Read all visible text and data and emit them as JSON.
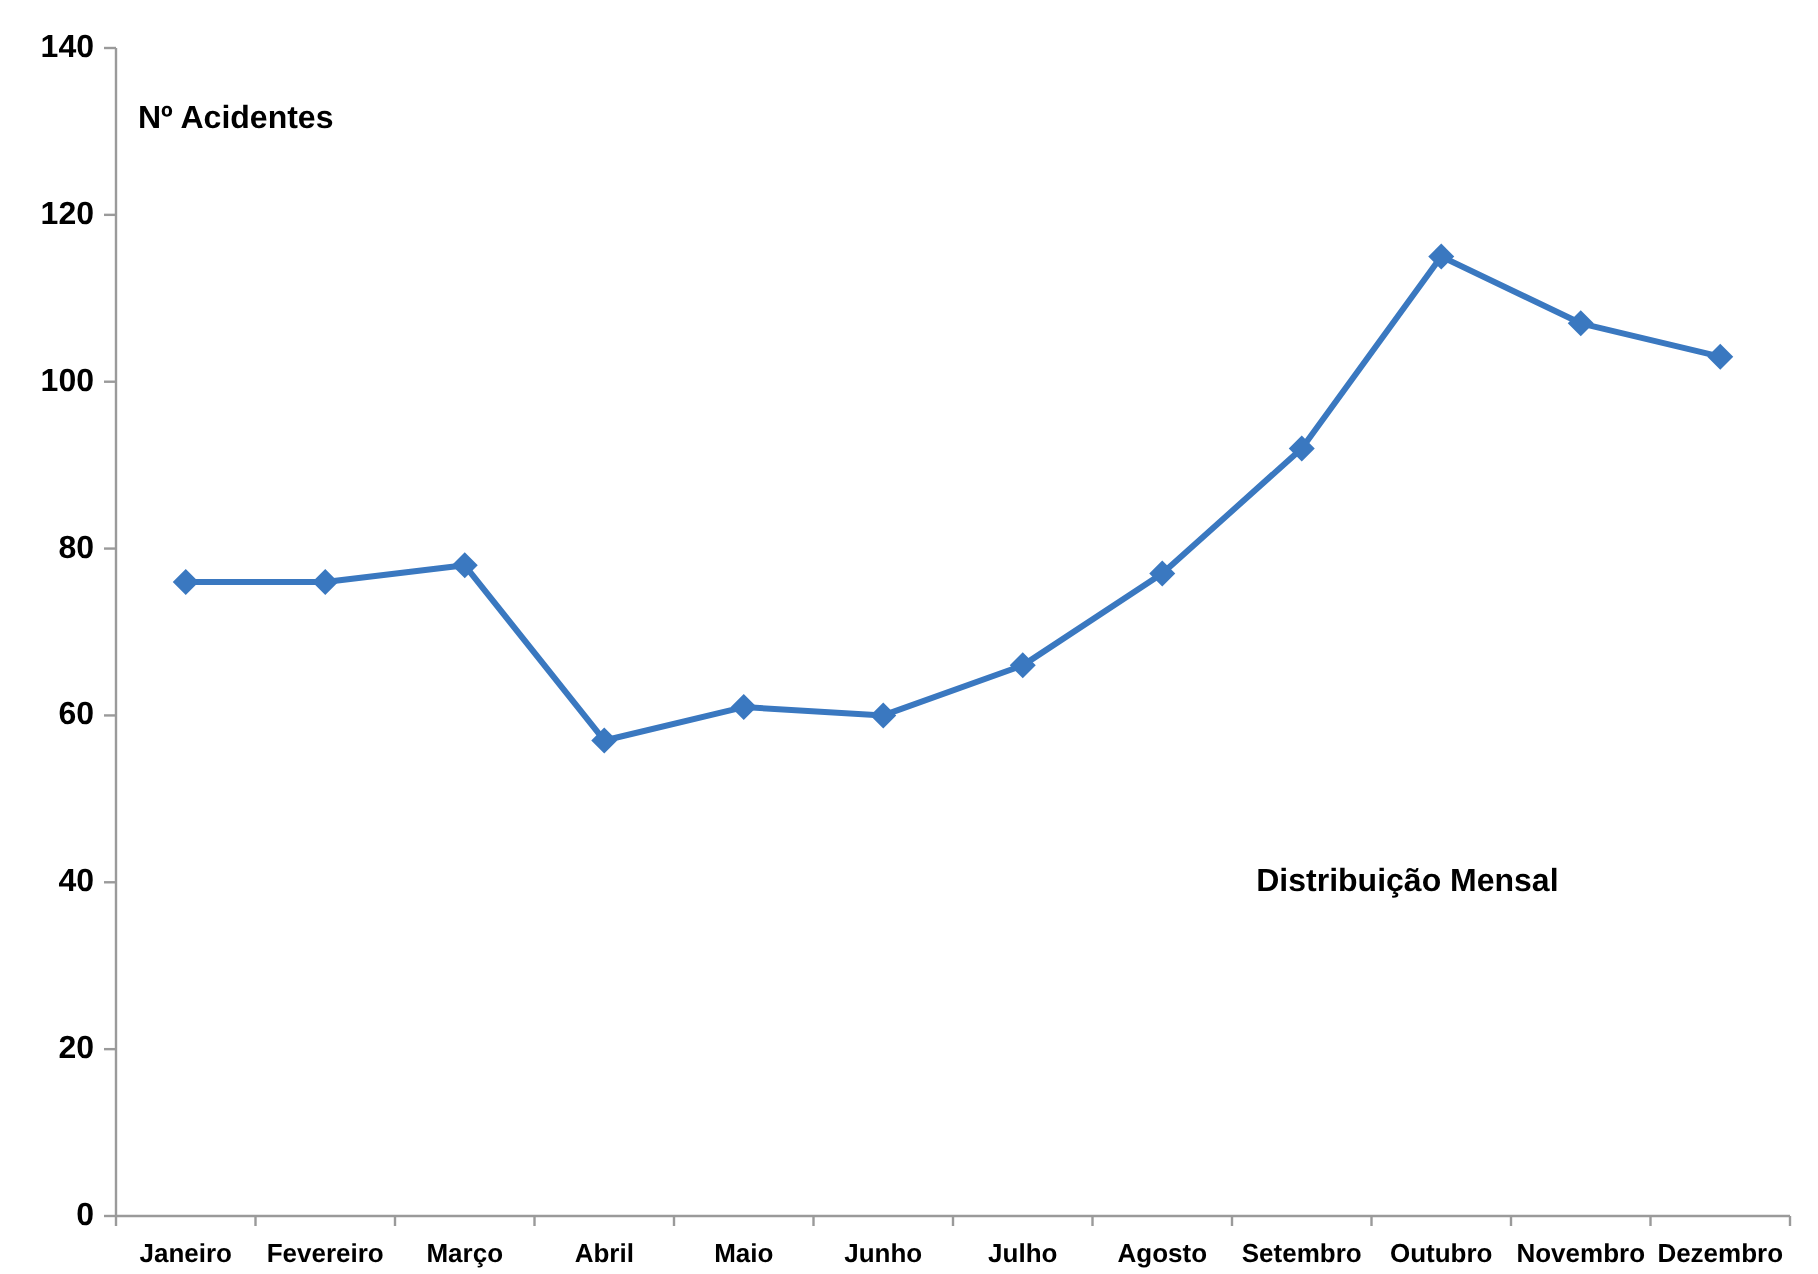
{
  "chart_data": {
    "type": "line",
    "title": "Distribuição Mensal",
    "ylabel": "Nº Acidentes",
    "categories": [
      "Janeiro",
      "Fevereiro",
      "Março",
      "Abril",
      "Maio",
      "Junho",
      "Julho",
      "Agosto",
      "Setembro",
      "Outubro",
      "Novembro",
      "Dezembro"
    ],
    "series": [
      {
        "color": "#3a78c0",
        "values": [
          76,
          76,
          78,
          57,
          61,
          60,
          66,
          77,
          92,
          115,
          107,
          103
        ]
      }
    ],
    "ylim": [
      0,
      140
    ],
    "yticks": [
      0,
      20,
      40,
      60,
      80,
      100,
      120,
      140
    ],
    "grid": false,
    "marker": "diamond",
    "line_style": "solid"
  }
}
